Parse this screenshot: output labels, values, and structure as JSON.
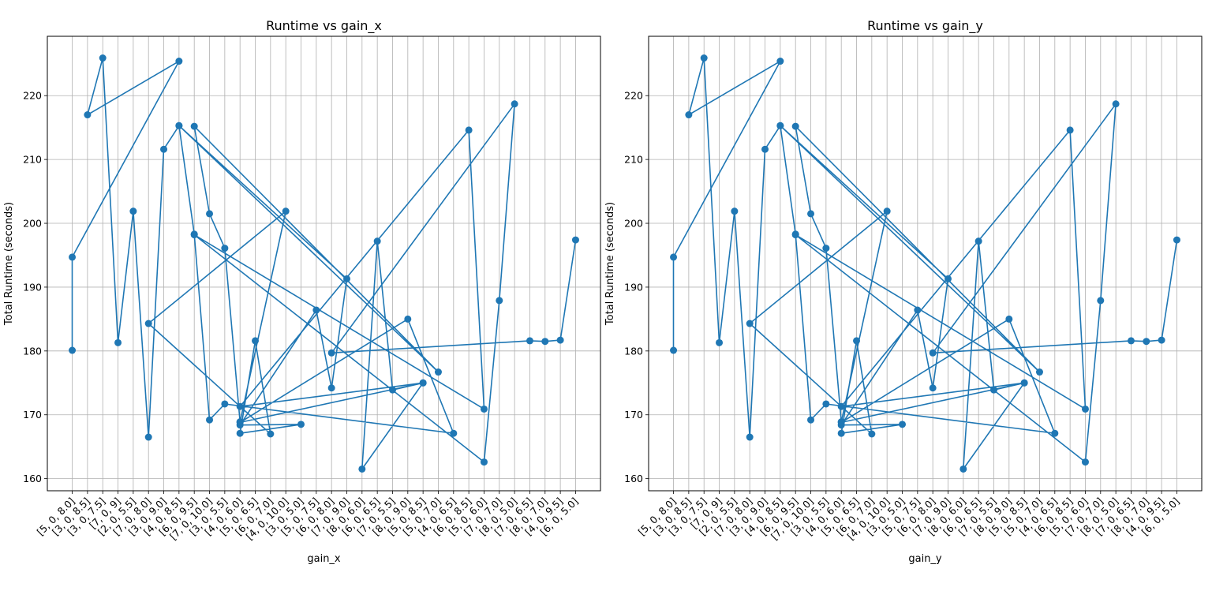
{
  "chart_data": [
    {
      "type": "line",
      "title": "Runtime vs gain_x",
      "xlabel": "gain_x",
      "ylabel": "Total Runtime (seconds)",
      "categories": [
        "[5, 0, 8.0]",
        "[3, 0, 8.5]",
        "[3, 0, 7.5]",
        "[7, 0, 9]",
        "[2, 0, 5.5]",
        "[7, 0, 8.0]",
        "[3, 0, 9.0]",
        "[4, 0, 8.5]",
        "[6, 0, 9.5]",
        "[7, 0, 10.0]",
        "[3, 0, 5.5]",
        "[4, 0, 6.0]",
        "[5, 0, 6.5]",
        "[6, 0, 7.0]",
        "[4, 0, 10.0]",
        "[3, 0, 5.0]",
        "[5, 0, 7.5]",
        "[6, 0, 8.0]",
        "[7, 0, 9.0]",
        "[8, 0, 6.0]",
        "[6, 0, 6.5]",
        "[7, 0, 5.5]",
        "[8, 0, 9.0]",
        "[5, 0, 8.5]",
        "[5, 0, 7.0]",
        "[4, 0, 6.5]",
        "[6, 0, 8.5]",
        "[5, 0, 6.0]",
        "[7, 0, 7.0]",
        "[8, 0, 5.0]",
        "[7, 0, 6.5]",
        "[8, 0, 7.0]",
        "[4, 0, 9.5]",
        "[6, 0, 5.0]"
      ],
      "points": [
        {
          "x": 0,
          "y": 180.1
        },
        {
          "x": 0,
          "y": 194.7
        },
        {
          "x": 7,
          "y": 225.4
        },
        {
          "x": 1,
          "y": 217.0
        },
        {
          "x": 2,
          "y": 225.9
        },
        {
          "x": 3,
          "y": 181.3
        },
        {
          "x": 4,
          "y": 201.9
        },
        {
          "x": 5,
          "y": 166.5
        },
        {
          "x": 6,
          "y": 211.6
        },
        {
          "x": 7,
          "y": 215.3
        },
        {
          "x": 24,
          "y": 176.7
        },
        {
          "x": 8,
          "y": 215.2
        },
        {
          "x": 9,
          "y": 201.5
        },
        {
          "x": 10,
          "y": 196.1
        },
        {
          "x": 11,
          "y": 168.9
        },
        {
          "x": 14,
          "y": 201.9
        },
        {
          "x": 5,
          "y": 184.3
        },
        {
          "x": 13,
          "y": 167.0
        },
        {
          "x": 12,
          "y": 181.6
        },
        {
          "x": 11,
          "y": 167.1
        },
        {
          "x": 15,
          "y": 168.5
        },
        {
          "x": 11,
          "y": 168.4
        },
        {
          "x": 16,
          "y": 186.4
        },
        {
          "x": 17,
          "y": 174.2
        },
        {
          "x": 18,
          "y": 191.3
        },
        {
          "x": 7,
          "y": 215.3
        },
        {
          "x": 8,
          "y": 198.3
        },
        {
          "x": 9,
          "y": 169.2
        },
        {
          "x": 10,
          "y": 171.7
        },
        {
          "x": 25,
          "y": 167.1
        },
        {
          "x": 22,
          "y": 185.0
        },
        {
          "x": 11,
          "y": 168.8
        },
        {
          "x": 23,
          "y": 175.0
        },
        {
          "x": 19,
          "y": 161.5
        },
        {
          "x": 20,
          "y": 197.2
        },
        {
          "x": 21,
          "y": 173.9
        },
        {
          "x": 23,
          "y": 175.0
        },
        {
          "x": 11,
          "y": 171.3
        },
        {
          "x": 26,
          "y": 214.6
        },
        {
          "x": 27,
          "y": 170.9
        },
        {
          "x": 8,
          "y": 198.2
        },
        {
          "x": 27,
          "y": 162.6
        },
        {
          "x": 28,
          "y": 187.9
        },
        {
          "x": 29,
          "y": 218.7
        },
        {
          "x": 17,
          "y": 179.7
        },
        {
          "x": 30,
          "y": 181.6
        },
        {
          "x": 31,
          "y": 181.5
        },
        {
          "x": 32,
          "y": 181.7
        },
        {
          "x": 33,
          "y": 197.4
        }
      ],
      "ylim": [
        158.1,
        229.3
      ],
      "yticks": [
        160,
        170,
        180,
        190,
        200,
        210,
        220
      ],
      "grid": true,
      "color": "#1f77b4"
    },
    {
      "type": "line",
      "title": "Runtime vs gain_y",
      "xlabel": "gain_y",
      "ylabel": "Total Runtime (seconds)",
      "categories": [
        "[5, 0, 8.0]",
        "[3, 0, 8.5]",
        "[3, 0, 7.5]",
        "[7, 0, 9]",
        "[2, 0, 5.5]",
        "[7, 0, 8.0]",
        "[3, 0, 9.0]",
        "[4, 0, 8.5]",
        "[6, 0, 9.5]",
        "[7, 0, 10.0]",
        "[3, 0, 5.5]",
        "[4, 0, 6.0]",
        "[5, 0, 6.5]",
        "[6, 0, 7.0]",
        "[4, 0, 10.0]",
        "[3, 0, 5.0]",
        "[5, 0, 7.5]",
        "[6, 0, 8.0]",
        "[7, 0, 9.0]",
        "[8, 0, 6.0]",
        "[6, 0, 6.5]",
        "[7, 0, 5.5]",
        "[8, 0, 9.0]",
        "[5, 0, 8.5]",
        "[5, 0, 7.0]",
        "[4, 0, 6.5]",
        "[6, 0, 8.5]",
        "[5, 0, 6.0]",
        "[7, 0, 7.0]",
        "[8, 0, 5.0]",
        "[7, 0, 6.5]",
        "[8, 0, 7.0]",
        "[4, 0, 9.5]",
        "[6, 0, 5.0]"
      ],
      "points": [
        {
          "x": 0,
          "y": 180.1
        },
        {
          "x": 0,
          "y": 194.7
        },
        {
          "x": 7,
          "y": 225.4
        },
        {
          "x": 1,
          "y": 217.0
        },
        {
          "x": 2,
          "y": 225.9
        },
        {
          "x": 3,
          "y": 181.3
        },
        {
          "x": 4,
          "y": 201.9
        },
        {
          "x": 5,
          "y": 166.5
        },
        {
          "x": 6,
          "y": 211.6
        },
        {
          "x": 7,
          "y": 215.3
        },
        {
          "x": 24,
          "y": 176.7
        },
        {
          "x": 8,
          "y": 215.2
        },
        {
          "x": 9,
          "y": 201.5
        },
        {
          "x": 10,
          "y": 196.1
        },
        {
          "x": 11,
          "y": 168.9
        },
        {
          "x": 14,
          "y": 201.9
        },
        {
          "x": 5,
          "y": 184.3
        },
        {
          "x": 13,
          "y": 167.0
        },
        {
          "x": 12,
          "y": 181.6
        },
        {
          "x": 11,
          "y": 167.1
        },
        {
          "x": 15,
          "y": 168.5
        },
        {
          "x": 11,
          "y": 168.4
        },
        {
          "x": 16,
          "y": 186.4
        },
        {
          "x": 17,
          "y": 174.2
        },
        {
          "x": 18,
          "y": 191.3
        },
        {
          "x": 7,
          "y": 215.3
        },
        {
          "x": 8,
          "y": 198.3
        },
        {
          "x": 9,
          "y": 169.2
        },
        {
          "x": 10,
          "y": 171.7
        },
        {
          "x": 25,
          "y": 167.1
        },
        {
          "x": 22,
          "y": 185.0
        },
        {
          "x": 11,
          "y": 168.8
        },
        {
          "x": 23,
          "y": 175.0
        },
        {
          "x": 19,
          "y": 161.5
        },
        {
          "x": 20,
          "y": 197.2
        },
        {
          "x": 21,
          "y": 173.9
        },
        {
          "x": 23,
          "y": 175.0
        },
        {
          "x": 11,
          "y": 171.3
        },
        {
          "x": 26,
          "y": 214.6
        },
        {
          "x": 27,
          "y": 170.9
        },
        {
          "x": 8,
          "y": 198.2
        },
        {
          "x": 27,
          "y": 162.6
        },
        {
          "x": 28,
          "y": 187.9
        },
        {
          "x": 29,
          "y": 218.7
        },
        {
          "x": 17,
          "y": 179.7
        },
        {
          "x": 30,
          "y": 181.6
        },
        {
          "x": 31,
          "y": 181.5
        },
        {
          "x": 32,
          "y": 181.7
        },
        {
          "x": 33,
          "y": 197.4
        }
      ],
      "ylim": [
        158.1,
        229.3
      ],
      "yticks": [
        160,
        170,
        180,
        190,
        200,
        210,
        220
      ],
      "grid": true,
      "color": "#1f77b4"
    }
  ]
}
